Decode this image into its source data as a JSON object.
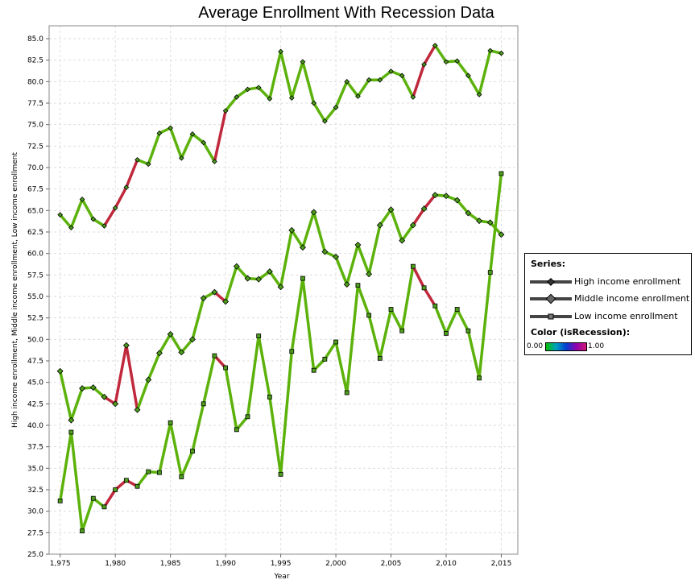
{
  "chart_data": {
    "type": "line",
    "title": "Average Enrollment With Recession Data",
    "xlabel": "Year",
    "ylabel": "High income enrollment, Middle income enrollment, Low income enrollment",
    "xlim": [
      1974,
      2016.5
    ],
    "ylim": [
      25.0,
      86.5
    ],
    "x_ticks": [
      "1,975",
      "1,980",
      "1,985",
      "1,990",
      "1,995",
      "2,000",
      "2,005",
      "2,010",
      "2,015"
    ],
    "y_ticks": [
      "25.0",
      "27.5",
      "30.0",
      "32.5",
      "35.0",
      "37.5",
      "40.0",
      "42.5",
      "45.0",
      "47.5",
      "50.0",
      "52.5",
      "55.0",
      "57.5",
      "60.0",
      "62.5",
      "65.0",
      "67.5",
      "70.0",
      "72.5",
      "75.0",
      "77.5",
      "80.0",
      "82.5",
      "85.0"
    ],
    "x": [
      1975,
      1976,
      1977,
      1978,
      1979,
      1980,
      1981,
      1982,
      1983,
      1984,
      1985,
      1986,
      1987,
      1988,
      1989,
      1990,
      1991,
      1992,
      1993,
      1994,
      1995,
      1996,
      1997,
      1998,
      1999,
      2000,
      2001,
      2002,
      2003,
      2004,
      2005,
      2006,
      2007,
      2008,
      2009,
      2010,
      2011,
      2012,
      2013,
      2014,
      2015
    ],
    "isRecession": [
      0,
      0,
      0,
      0,
      1,
      1,
      1,
      1,
      0,
      0,
      0,
      0,
      0,
      0,
      1,
      1,
      0,
      0,
      0,
      0,
      0,
      0,
      0,
      0,
      0,
      0,
      0,
      0,
      0,
      0,
      0,
      0,
      1,
      1,
      1,
      0,
      0,
      0,
      0,
      0,
      0
    ],
    "series": [
      {
        "name": "High income enrollment",
        "marker": "diamond",
        "values": [
          64.5,
          63.0,
          66.3,
          64.0,
          63.2,
          65.3,
          67.7,
          70.9,
          70.4,
          74.0,
          74.6,
          71.1,
          73.9,
          72.9,
          70.7,
          76.6,
          78.2,
          79.1,
          79.3,
          78.0,
          83.5,
          78.1,
          82.3,
          77.5,
          75.4,
          77.0,
          80.0,
          78.3,
          80.2,
          80.2,
          81.2,
          80.7,
          78.2,
          82.0,
          84.2,
          82.3,
          82.4,
          80.7,
          78.5,
          83.6,
          83.3
        ]
      },
      {
        "name": "Middle income enrollment",
        "marker": "diamond",
        "values": [
          46.3,
          40.6,
          44.3,
          44.4,
          43.3,
          42.5,
          49.3,
          41.8,
          45.3,
          48.4,
          50.6,
          48.5,
          50.0,
          54.8,
          55.5,
          54.4,
          58.5,
          57.1,
          57.0,
          57.9,
          56.1,
          62.7,
          60.7,
          64.8,
          60.2,
          59.6,
          56.4,
          61.0,
          57.6,
          63.3,
          65.1,
          61.5,
          63.3,
          65.2,
          66.8,
          66.7,
          66.2,
          64.7,
          63.8,
          63.6,
          62.2
        ]
      },
      {
        "name": "Low income enrollment",
        "marker": "square",
        "values": [
          31.2,
          39.2,
          27.7,
          31.5,
          30.5,
          32.5,
          33.6,
          32.9,
          34.6,
          34.5,
          40.3,
          34.0,
          37.0,
          42.5,
          48.1,
          46.7,
          39.5,
          41.0,
          50.4,
          43.3,
          34.3,
          48.6,
          57.1,
          46.4,
          47.7,
          49.7,
          43.8,
          56.3,
          52.8,
          47.8,
          53.5,
          51.0,
          58.5,
          56.0,
          53.9,
          50.7,
          53.5,
          51.0,
          45.5,
          57.8,
          69.3
        ]
      }
    ],
    "legend_position": "right",
    "grid": true
  },
  "legend": {
    "heading": "Series:",
    "color_heading": "Color (isRecession):",
    "color_min": "0.00",
    "color_max": "1.00"
  },
  "colors": {
    "non_recession": "#5cb20b",
    "recession": "#c0283c",
    "marker_fill": "#4d9e1a",
    "grid": "#dddddd"
  }
}
